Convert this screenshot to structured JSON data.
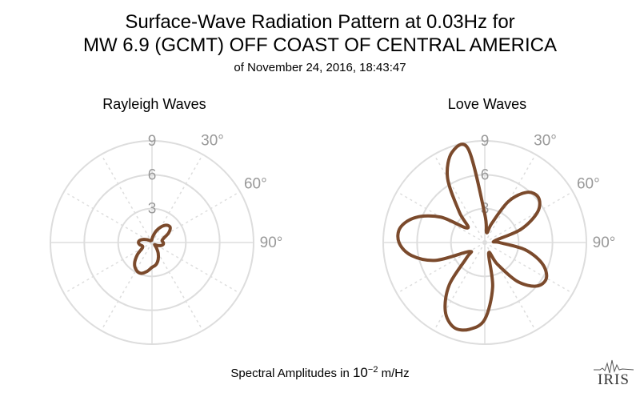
{
  "header": {
    "title_line1": "Surface-Wave Radiation Pattern at 0.03Hz for",
    "title_line2": "MW 6.9 (GCMT) OFF COAST OF CENTRAL AMERICA",
    "subtitle": "of November 24, 2016, 18:43:47"
  },
  "footer": {
    "label": "Spectral Amplitudes in ",
    "unit_base": "10",
    "unit_exp": "−2",
    "unit_suffix": " m/Hz"
  },
  "logo": {
    "text": "IRIS"
  },
  "colors": {
    "pattern": "#7b4a2c",
    "grid": "#dddddd",
    "tick_text": "#999999"
  },
  "chart_data": [
    {
      "type": "polar-line",
      "title": "Rayleigh Waves",
      "r_ticks": [
        "3",
        "6",
        "9"
      ],
      "r_max": 9,
      "theta_ticks": [
        "30°",
        "60°",
        "90°"
      ],
      "grid": true,
      "series": [
        {
          "theta_deg": [
            0,
            10,
            20,
            30,
            40,
            50,
            60,
            70,
            80,
            90,
            100,
            110,
            120,
            130,
            140,
            150,
            160,
            170,
            180,
            190,
            200,
            210,
            220,
            230,
            240,
            250,
            260,
            270,
            280,
            290,
            300,
            310,
            320,
            330,
            340,
            350
          ],
          "r": [
            0.3,
            0.6,
            1.1,
            1.6,
            2.0,
            2.1,
            1.7,
            1.1,
            0.9,
            1.0,
            1.0,
            0.8,
            0.5,
            0.3,
            0.6,
            1.1,
            1.6,
            2.0,
            2.2,
            2.6,
            2.9,
            2.8,
            2.4,
            1.7,
            1.0,
            0.9,
            1.1,
            1.2,
            1.1,
            0.8,
            0.5,
            0.3,
            0.2,
            0.2,
            0.2,
            0.2
          ]
        }
      ]
    },
    {
      "type": "polar-line",
      "title": "Love Waves",
      "r_ticks": [
        "3",
        "6",
        "9"
      ],
      "r_max": 9,
      "theta_ticks": [
        "30°",
        "60°",
        "90°"
      ],
      "grid": true,
      "series": [
        {
          "theta_deg": [
            0,
            10,
            20,
            30,
            40,
            50,
            60,
            70,
            80,
            90,
            100,
            110,
            120,
            130,
            140,
            150,
            160,
            170,
            180,
            190,
            200,
            210,
            220,
            230,
            240,
            250,
            260,
            270,
            280,
            290,
            300,
            310,
            320,
            330,
            340,
            350
          ],
          "r": [
            2.5,
            0.9,
            1.8,
            4.2,
            5.8,
            6.2,
            5.4,
            3.4,
            0.9,
            1.3,
            3.6,
            5.4,
            6.3,
            6.0,
            4.5,
            2.2,
            1.0,
            4.0,
            6.8,
            7.8,
            8.0,
            7.0,
            4.9,
            2.1,
            1.6,
            4.6,
            6.6,
            7.6,
            7.6,
            6.5,
            4.5,
            2.0,
            3.5,
            6.6,
            8.5,
            8.4
          ]
        }
      ]
    }
  ]
}
